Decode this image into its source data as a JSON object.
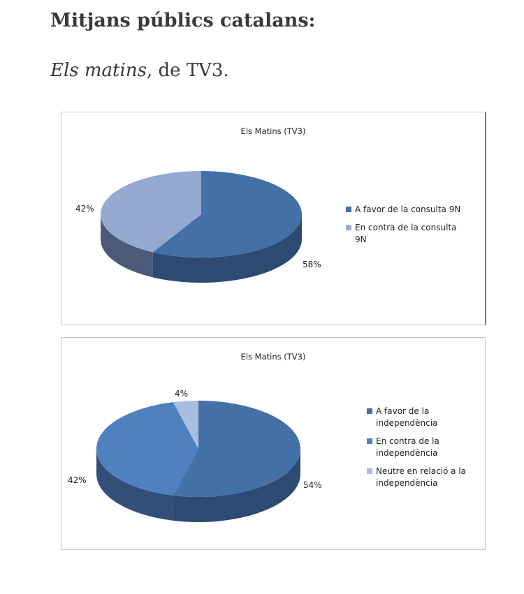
{
  "article": {
    "heading": "Mitjans públics catalans:",
    "subheading_italic": "Els matins",
    "subheading_rest": ", de TV3."
  },
  "chart_data": [
    {
      "type": "pie",
      "title": "Els Matins (TV3)",
      "slices": [
        {
          "label": "A favor de la consulta 9N",
          "value": 58,
          "pct_label": "58%",
          "color": "#4470a8",
          "side": "#2d4a72"
        },
        {
          "label": "En contra de la consulta 9N",
          "value": 42,
          "pct_label": "42%",
          "color": "#94aad1",
          "side": "#4c5a78"
        }
      ],
      "legend_position": "right"
    },
    {
      "type": "pie",
      "title": "Els Matins (TV3)",
      "slices": [
        {
          "label": "A favor de la independència",
          "value": 54,
          "pct_label": "54%",
          "color": "#4470a8",
          "side": "#2d4a72"
        },
        {
          "label": "En contra de la independència",
          "value": 42,
          "pct_label": "42%",
          "color": "#4f81c1",
          "side": "#324f78"
        },
        {
          "label": "Neutre en relació a la independència",
          "value": 4,
          "pct_label": "4%",
          "color": "#a8bde0",
          "side": "#7a8fb5"
        }
      ],
      "legend_position": "right"
    }
  ]
}
